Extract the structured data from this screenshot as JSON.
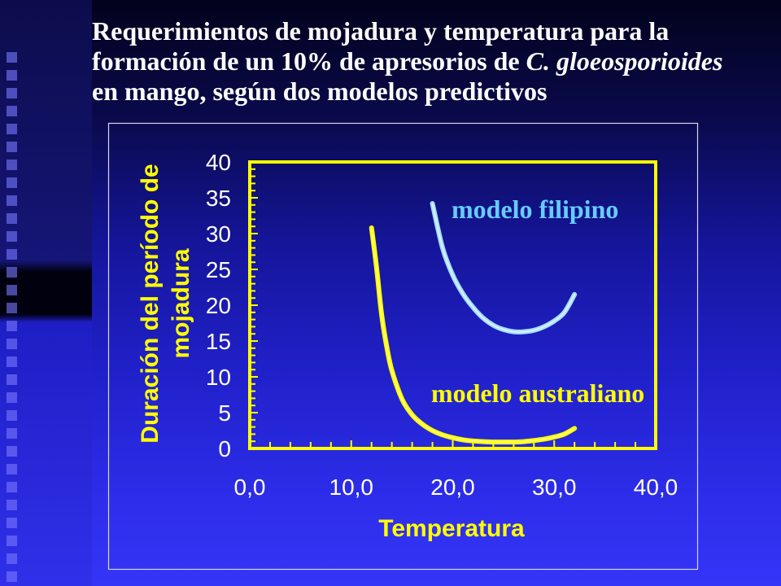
{
  "slide": {
    "title_line1": "Requerimientos de mojadura y temperatura para la",
    "title_line2_prefix": "formación de un 10% de apresorios de ",
    "title_line2_italic": "C. gloeosporioides",
    "title_line3": "en mango, según dos modelos predictivos"
  },
  "colors": {
    "title_text": "#ffffff",
    "axis_frame": "#ffff00",
    "axis_title": "#ffff00",
    "tick_labels": "#ffffff",
    "chart_frame": "#d6d6ee"
  },
  "chart_data": {
    "type": "line",
    "xlabel": "Temperatura",
    "ylabel": [
      "Duración del período de",
      "mojadura"
    ],
    "xlim": [
      0,
      40
    ],
    "ylim": [
      0,
      40
    ],
    "x_ticks": [
      0,
      10,
      20,
      30,
      40
    ],
    "x_tick_labels": [
      "0,0",
      "10,0",
      "20,0",
      "30,0",
      "40,0"
    ],
    "y_ticks": [
      0,
      5,
      10,
      15,
      20,
      25,
      30,
      35,
      40
    ],
    "y_tick_labels": [
      "0",
      "5",
      "10",
      "15",
      "20",
      "25",
      "30",
      "35",
      "40"
    ],
    "grid": false,
    "series": [
      {
        "name": "modelo filipino",
        "color": "#a6dcff",
        "highlight": "#e4f6ff",
        "label_color": "#66ccff",
        "x": [
          18,
          19,
          20,
          21,
          22,
          23,
          24,
          25,
          26,
          27,
          28,
          29,
          30,
          31,
          32
        ],
        "y": [
          34.2,
          28.0,
          24.2,
          21.6,
          19.7,
          18.2,
          17.2,
          16.6,
          16.3,
          16.3,
          16.5,
          17.0,
          17.8,
          19.0,
          21.5
        ]
      },
      {
        "name": "modelo australiano",
        "color": "#ffff00",
        "highlight": "#ffff90",
        "label_color": "#ffff00",
        "x": [
          12,
          12.5,
          13,
          13.5,
          14,
          15,
          16,
          17,
          18,
          19,
          20,
          21,
          22,
          23,
          24,
          25,
          26,
          27,
          28,
          29,
          30,
          31,
          32
        ],
        "y": [
          30.8,
          25.2,
          18.6,
          14.2,
          10.9,
          6.9,
          4.7,
          3.4,
          2.5,
          1.9,
          1.5,
          1.2,
          1.05,
          0.95,
          0.9,
          0.9,
          0.9,
          0.95,
          1.1,
          1.3,
          1.6,
          2.0,
          2.8
        ]
      }
    ]
  }
}
